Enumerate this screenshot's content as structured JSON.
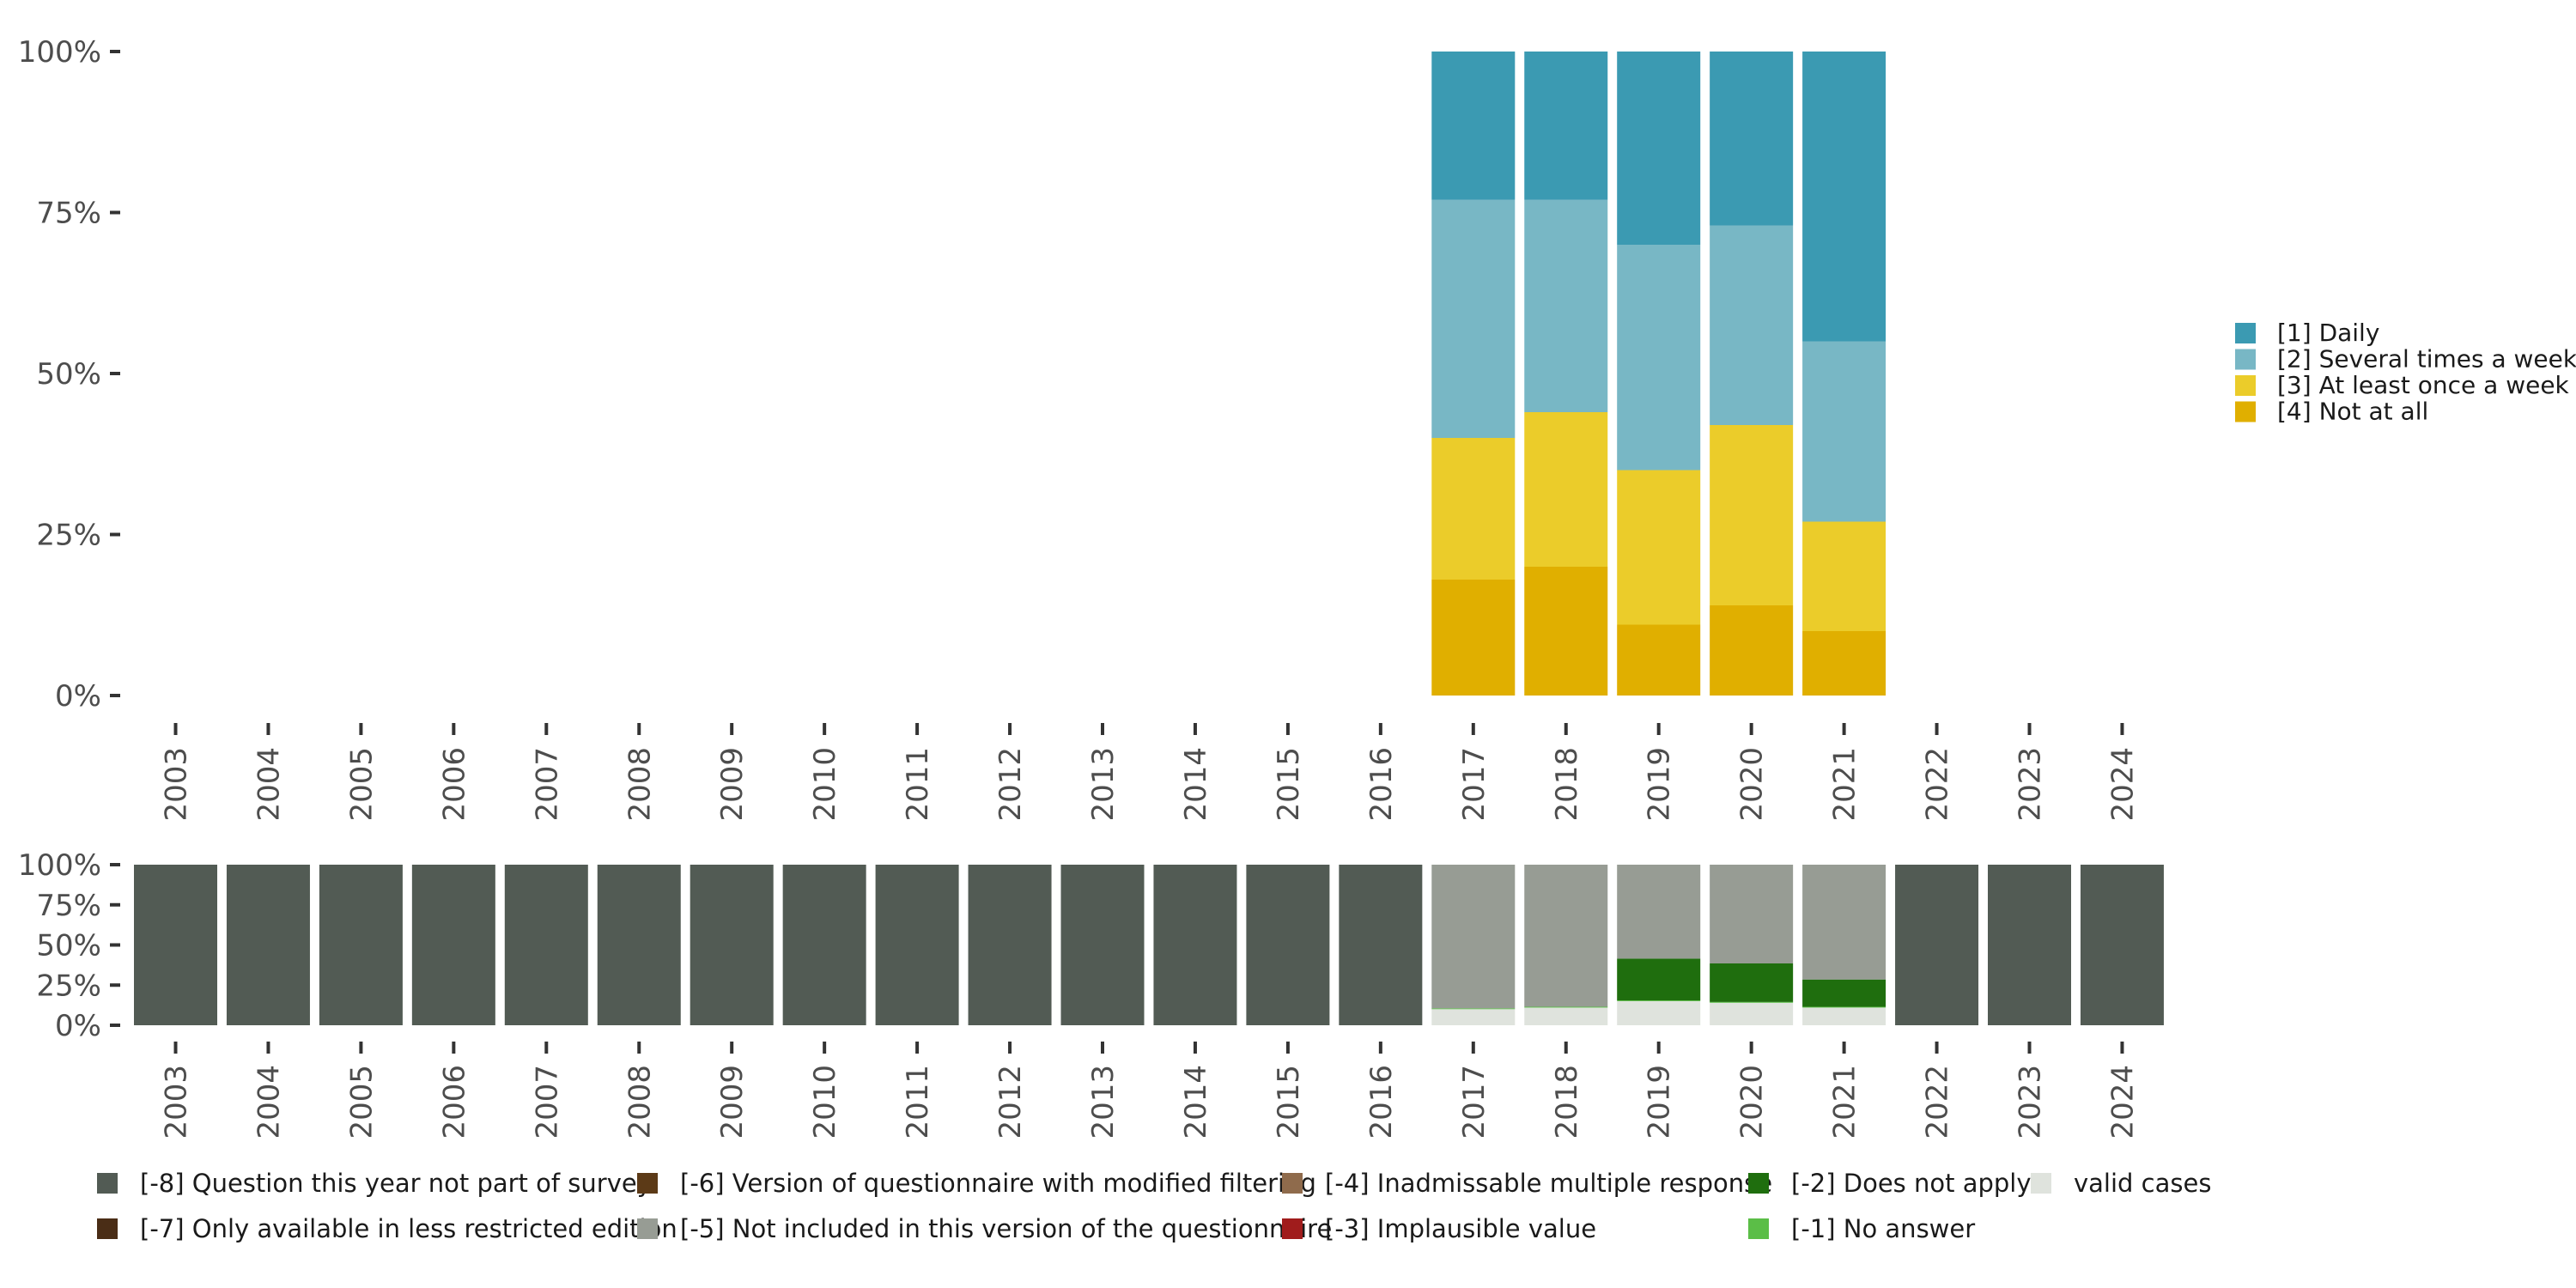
{
  "chart_data": [
    {
      "type": "bar",
      "stacked": true,
      "percent": true,
      "categories": [
        "2003",
        "2004",
        "2005",
        "2006",
        "2007",
        "2008",
        "2009",
        "2010",
        "2011",
        "2012",
        "2013",
        "2014",
        "2015",
        "2016",
        "2017",
        "2018",
        "2019",
        "2020",
        "2021",
        "2022",
        "2023",
        "2024"
      ],
      "ylim": [
        0,
        100
      ],
      "y_ticks": [
        "0%",
        "25%",
        "50%",
        "75%",
        "100%"
      ],
      "title": "",
      "xlabel": "",
      "ylabel": "",
      "legend_position": "right",
      "series": [
        {
          "name": "[4] Not at all",
          "color": "#E0AF00",
          "values": [
            null,
            null,
            null,
            null,
            null,
            null,
            null,
            null,
            null,
            null,
            null,
            null,
            null,
            null,
            18,
            20,
            11,
            14,
            10,
            null,
            null,
            null
          ]
        },
        {
          "name": "[3] At least once a week",
          "color": "#EBCC2A",
          "values": [
            null,
            null,
            null,
            null,
            null,
            null,
            null,
            null,
            null,
            null,
            null,
            null,
            null,
            null,
            22,
            24,
            24,
            28,
            17,
            null,
            null,
            null
          ]
        },
        {
          "name": "[2] Several times a week",
          "color": "#78B7C5",
          "values": [
            null,
            null,
            null,
            null,
            null,
            null,
            null,
            null,
            null,
            null,
            null,
            null,
            null,
            null,
            37,
            33,
            35,
            31,
            28,
            null,
            null,
            null
          ]
        },
        {
          "name": "[1] Daily",
          "color": "#3B9AB2",
          "values": [
            null,
            null,
            null,
            null,
            null,
            null,
            null,
            null,
            null,
            null,
            null,
            null,
            null,
            null,
            23,
            23,
            30,
            27,
            45,
            null,
            null,
            null
          ]
        }
      ],
      "legend_order": [
        "[1] Daily",
        "[2] Several times a week",
        "[3] At least once a week",
        "[4] Not at all"
      ]
    },
    {
      "type": "bar",
      "stacked": true,
      "percent": true,
      "categories": [
        "2003",
        "2004",
        "2005",
        "2006",
        "2007",
        "2008",
        "2009",
        "2010",
        "2011",
        "2012",
        "2013",
        "2014",
        "2015",
        "2016",
        "2017",
        "2018",
        "2019",
        "2020",
        "2021",
        "2022",
        "2023",
        "2024"
      ],
      "ylim": [
        0,
        100
      ],
      "y_ticks": [
        "0%",
        "25%",
        "50%",
        "75%",
        "100%"
      ],
      "title": "",
      "xlabel": "",
      "ylabel": "",
      "legend_position": "bottom",
      "series": [
        {
          "name": "valid cases",
          "color": "#DFE3DD",
          "values": [
            0,
            0,
            0,
            0,
            0,
            0,
            0,
            0,
            0,
            0,
            0,
            0,
            0,
            0,
            10,
            11,
            15,
            14,
            11,
            0,
            0,
            0
          ]
        },
        {
          "name": "[-1] No answer",
          "color": "#5BBE47",
          "values": [
            0,
            0,
            0,
            0,
            0,
            0,
            0,
            0,
            0,
            0,
            0,
            0,
            0,
            0,
            0.5,
            0.5,
            0.5,
            0.5,
            0.5,
            0,
            0,
            0
          ]
        },
        {
          "name": "[-2] Does not apply",
          "color": "#1F6E0E",
          "values": [
            0,
            0,
            0,
            0,
            0,
            0,
            0,
            0,
            0,
            0,
            0,
            0,
            0,
            0,
            0,
            0,
            26,
            24,
            17,
            0,
            0,
            0
          ]
        },
        {
          "name": "[-3] Implausible value",
          "color": "#A01C1C",
          "values": [
            0,
            0,
            0,
            0,
            0,
            0,
            0,
            0,
            0,
            0,
            0,
            0,
            0,
            0,
            0,
            0,
            0,
            0,
            0,
            0,
            0,
            0
          ]
        },
        {
          "name": "[-4] Inadmissable multiple response",
          "color": "#8F6B4C",
          "values": [
            0,
            0,
            0,
            0,
            0,
            0,
            0,
            0,
            0,
            0,
            0,
            0,
            0,
            0,
            0,
            0,
            0,
            0,
            0,
            0,
            0,
            0
          ]
        },
        {
          "name": "[-5] Not included in this version of the questionnaire",
          "color": "#979C94",
          "values": [
            0,
            0,
            0,
            0,
            0,
            0,
            0,
            0,
            0,
            0,
            0,
            0,
            0,
            0,
            89.5,
            88.5,
            58.5,
            61.5,
            71.5,
            0,
            0,
            0
          ]
        },
        {
          "name": "[-6] Version of questionnaire with modified filtering",
          "color": "#5C3A17",
          "values": [
            0,
            0,
            0,
            0,
            0,
            0,
            0,
            0,
            0,
            0,
            0,
            0,
            0,
            0,
            0,
            0,
            0,
            0,
            0,
            0,
            0,
            0
          ]
        },
        {
          "name": "[-7] Only available in less restricted edition",
          "color": "#4A2D16",
          "values": [
            0,
            0,
            0,
            0,
            0,
            0,
            0,
            0,
            0,
            0,
            0,
            0,
            0,
            0,
            0,
            0,
            0,
            0,
            0,
            0,
            0,
            0
          ]
        },
        {
          "name": "[-8] Question this year not part of survey",
          "color": "#525B54",
          "values": [
            100,
            100,
            100,
            100,
            100,
            100,
            100,
            100,
            100,
            100,
            100,
            100,
            100,
            100,
            0,
            0,
            0,
            0,
            0,
            100,
            100,
            100
          ]
        }
      ],
      "legend_rows": [
        [
          "[-8] Question this year not part of survey",
          "[-6] Version of questionnaire with modified filtering",
          "[-4] Inadmissable multiple response",
          "[-2] Does not apply",
          "valid cases"
        ],
        [
          "[-7] Only available in less restricted edition",
          "[-5] Not included in this version of the questionnaire",
          "[-3] Implausible value",
          "[-1] No answer"
        ]
      ]
    }
  ]
}
